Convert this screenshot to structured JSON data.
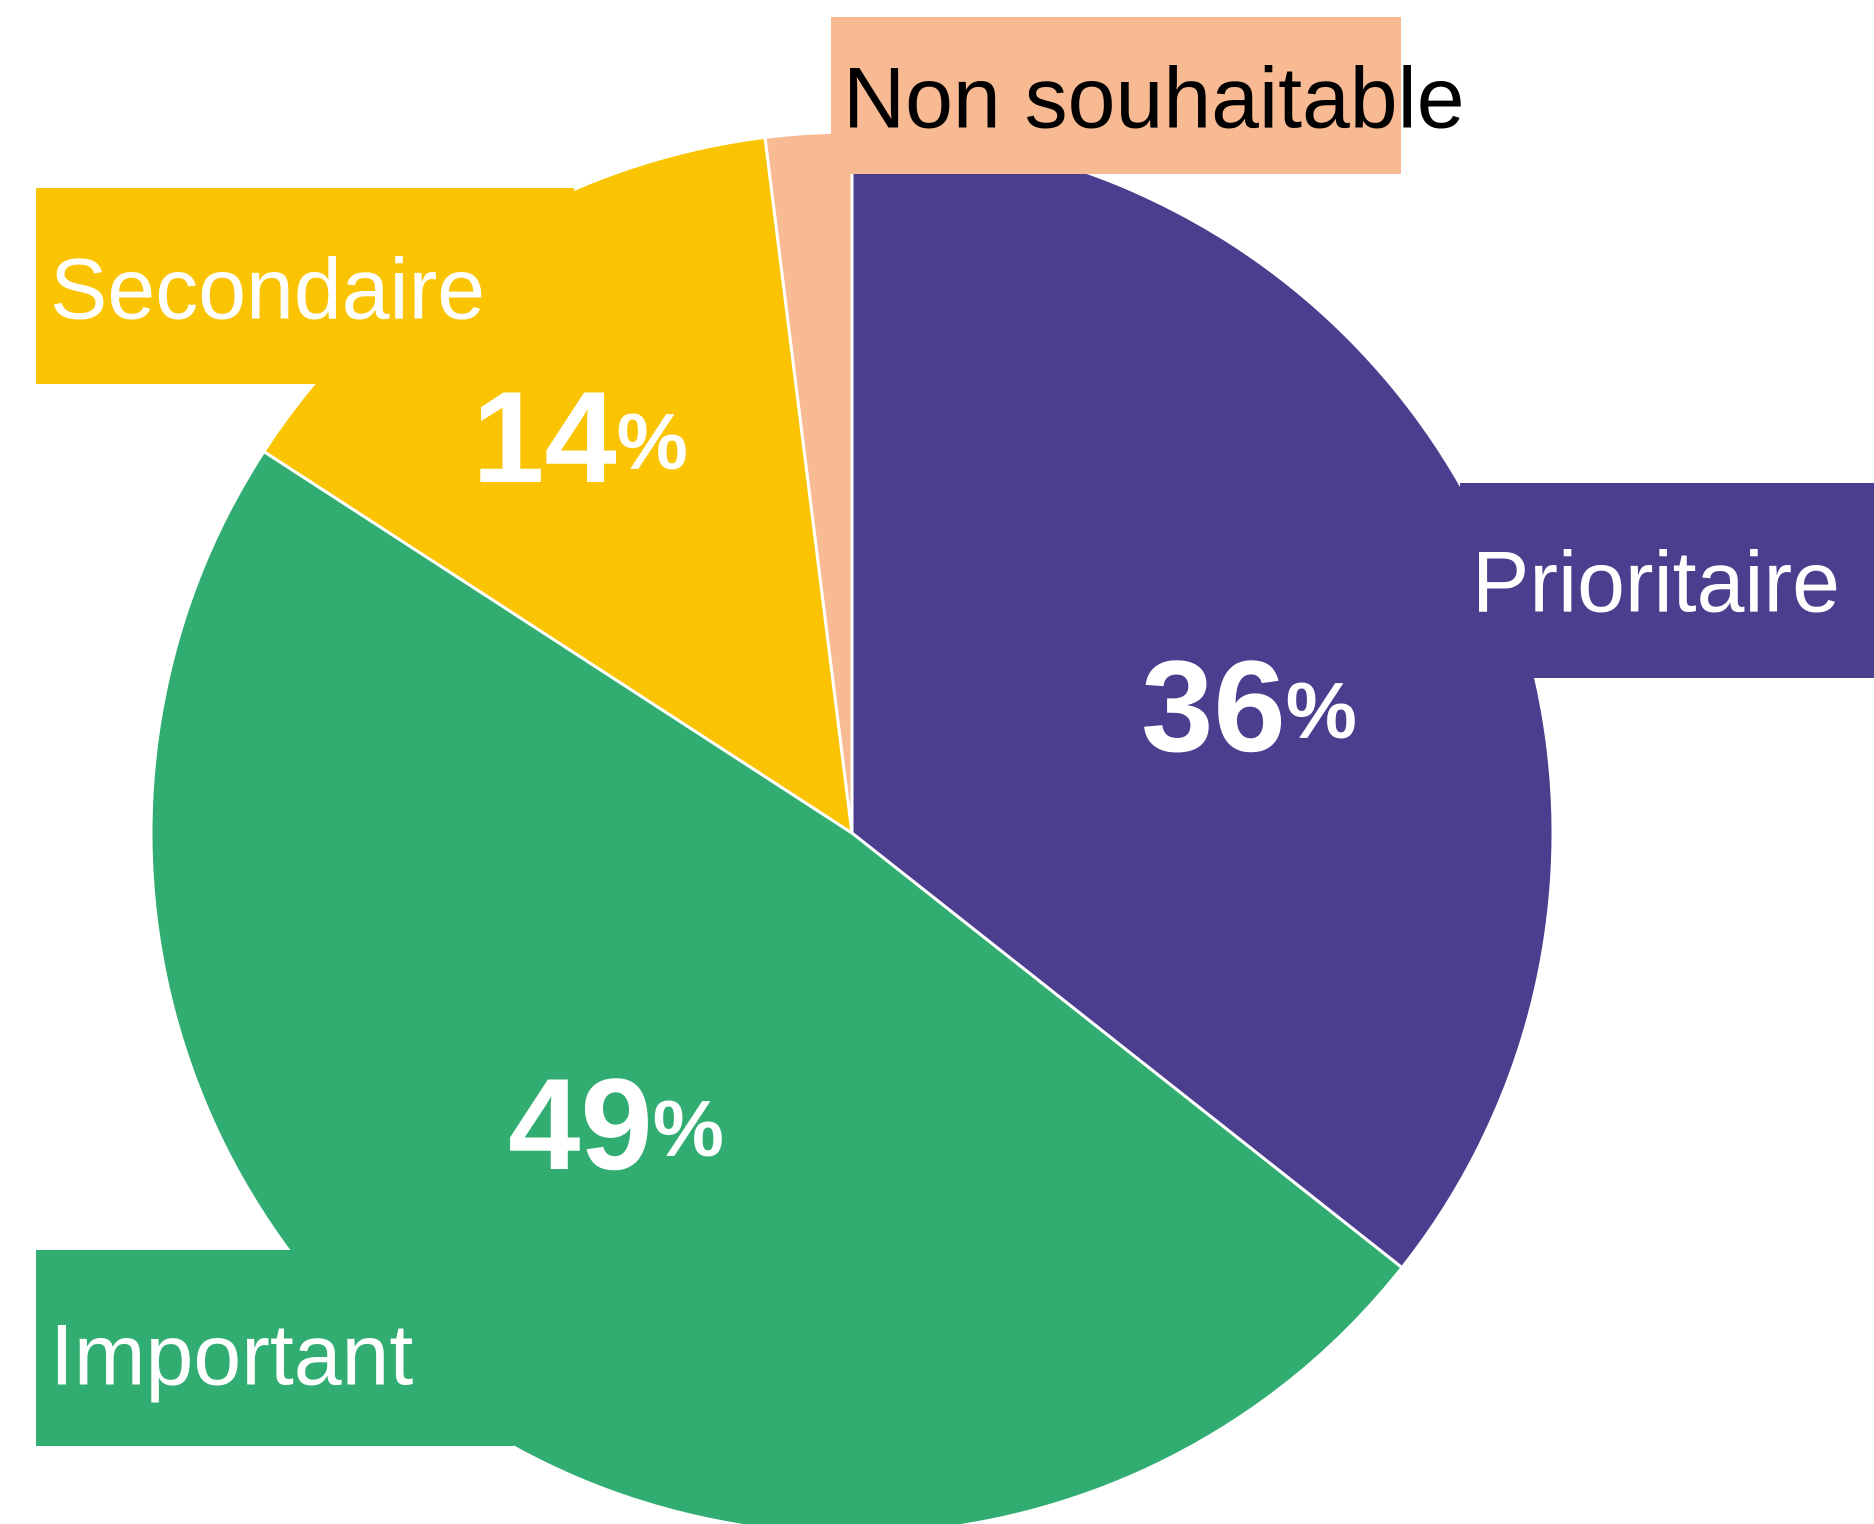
{
  "chart_data": {
    "type": "pie",
    "categories": [
      "Prioritaire",
      "Important",
      "Secondaire",
      "Non souhaitable"
    ],
    "values": [
      36,
      49,
      14,
      2
    ],
    "value_labels": [
      "36%",
      "49%",
      "14%",
      null
    ],
    "colors": [
      "#4c3d8f",
      "#31ad72",
      "#fac403",
      "#f7ba92"
    ]
  }
}
